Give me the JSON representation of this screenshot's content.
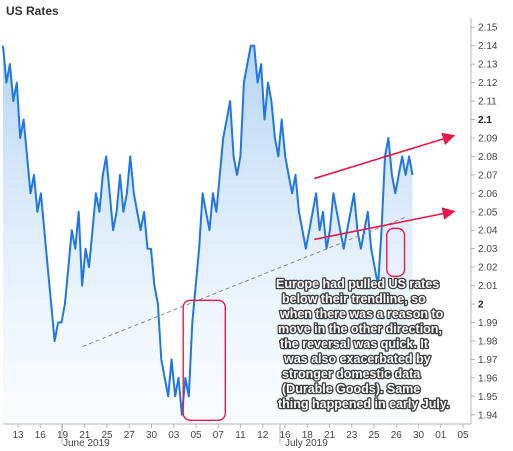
{
  "chart_data": {
    "type": "line",
    "title": "US Rates",
    "y_ticks": [
      "2.15",
      "2.14",
      "2.13",
      "2.12",
      "2.11",
      "2.1",
      "2.09",
      "2.08",
      "2.07",
      "2.06",
      "2.05",
      "2.04",
      "2.03",
      "2.02",
      "2.01",
      "2",
      "1.99",
      "1.98",
      "1.97",
      "1.96",
      "1.95",
      "1.94"
    ],
    "ylim": [
      1.935,
      2.155
    ],
    "x_ticks": [
      "13",
      "16",
      "19",
      "21",
      "25",
      "27",
      "30",
      "03",
      "05",
      "07",
      "11",
      "12",
      "16",
      "18",
      "21",
      "23",
      "25",
      "26",
      "30",
      "01",
      "05"
    ],
    "x_month_labels": [
      "June 2019",
      "July 2019"
    ],
    "series": [
      {
        "color": "#1f77e5",
        "values": [
          2.14,
          2.12,
          2.13,
          2.11,
          2.12,
          2.09,
          2.1,
          2.08,
          2.06,
          2.07,
          2.05,
          2.06,
          2.04,
          2.02,
          2.0,
          1.98,
          1.99,
          1.99,
          2.0,
          2.02,
          2.04,
          2.03,
          2.05,
          2.01,
          2.03,
          2.02,
          2.04,
          2.06,
          2.05,
          2.07,
          2.08,
          2.06,
          2.04,
          2.05,
          2.07,
          2.05,
          2.06,
          2.08,
          2.06,
          2.05,
          2.04,
          2.05,
          2.03,
          2.03,
          2.01,
          2.0,
          1.97,
          1.96,
          1.95,
          1.97,
          1.95,
          1.96,
          1.94,
          1.96,
          1.95,
          1.99,
          2.01,
          2.03,
          2.06,
          2.05,
          2.04,
          2.06,
          2.05,
          2.07,
          2.09,
          2.1,
          2.11,
          2.08,
          2.07,
          2.08,
          2.12,
          2.13,
          2.14,
          2.14,
          2.12,
          2.13,
          2.1,
          2.12,
          2.11,
          2.09,
          2.08,
          2.1,
          2.08,
          2.07,
          2.06,
          2.07,
          2.05,
          2.04,
          2.03,
          2.04,
          2.05,
          2.06,
          2.04,
          2.05,
          2.03,
          2.04,
          2.06,
          2.05,
          2.04,
          2.03,
          2.04,
          2.05,
          2.06,
          2.04,
          2.03,
          2.04,
          2.05,
          2.03,
          2.02,
          2.01,
          2.04,
          2.08,
          2.09,
          2.07,
          2.06,
          2.07,
          2.08,
          2.07,
          2.08,
          2.07
        ]
      }
    ],
    "trendlines": [
      {
        "style": "dashed",
        "color": "#888888",
        "from": [
          0.17,
          1.977
        ],
        "to": [
          0.86,
          2.047
        ]
      },
      {
        "style": "solid-arrow",
        "color": "#e8194a",
        "from": [
          0.665,
          2.035
        ],
        "to": [
          0.96,
          2.05
        ]
      },
      {
        "style": "solid-arrow",
        "color": "#e8194a",
        "from": [
          0.665,
          2.068
        ],
        "to": [
          0.96,
          2.091
        ]
      }
    ],
    "highlights": [
      {
        "color": "#e8194a",
        "x_range": [
          0.385,
          0.475
        ],
        "y_range": [
          1.937,
          2.002
        ]
      },
      {
        "color": "#e8194a",
        "x_range": [
          0.82,
          0.858
        ],
        "y_range": [
          2.015,
          2.041
        ]
      }
    ],
    "annotation": [
      "Europe had pulled US rates",
      "below their trendline, so",
      "when there was a reason to",
      "move in the other direction,",
      "the reversal was quick.  It",
      "was also exacerbated by",
      "stronger domestic data",
      "(Durable Goods).  Same",
      "thing happened in early July."
    ],
    "grid": false,
    "legend": "none"
  }
}
